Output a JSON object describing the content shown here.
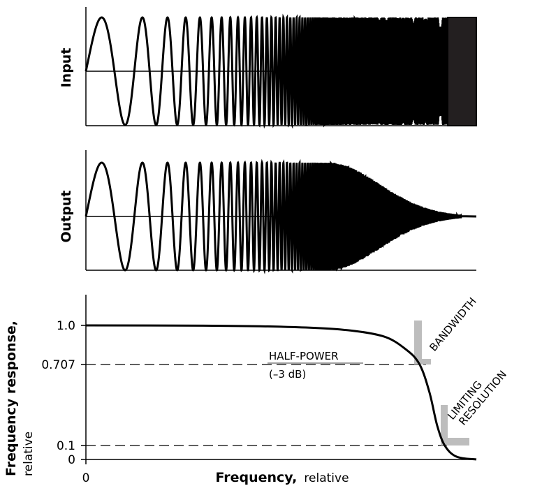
{
  "chart_data": [
    {
      "type": "line",
      "ylabel": "Input",
      "description_signal": "chirp sinusoid, amplitude 1.0, frequency increasing left to right",
      "amplitude": 1.0
    },
    {
      "type": "line",
      "ylabel": "Output",
      "description_signal": "same chirp after filtering; amplitude falls to 0 at high frequency",
      "amplitude_start": 1.0,
      "amplitude_end": 0.0
    },
    {
      "type": "line",
      "xlabel": "Frequency,",
      "xlabel_unit": "relative",
      "ylabel": "Frequency response,",
      "ylabel_unit": "relative",
      "x_ticks": [
        "0"
      ],
      "y_ticks": [
        "1.0",
        "0.707",
        "0.1",
        "0"
      ],
      "y_tick_values": [
        1.0,
        0.707,
        0.1,
        0.0
      ],
      "xlim": [
        0,
        1
      ],
      "ylim": [
        0,
        1.2
      ],
      "series": [
        {
          "points": [
            [
              0,
              1.0
            ],
            [
              0.3,
              0.998
            ],
            [
              0.5,
              0.99
            ],
            [
              0.65,
              0.97
            ],
            [
              0.76,
              0.92
            ],
            [
              0.82,
              0.82
            ],
            [
              0.855,
              0.707
            ],
            [
              0.88,
              0.5
            ],
            [
              0.9,
              0.25
            ],
            [
              0.92,
              0.1
            ],
            [
              0.95,
              0.02
            ],
            [
              1.0,
              0.0
            ]
          ]
        }
      ],
      "reference_lines": [
        {
          "y": 0.707,
          "style": "dashed"
        },
        {
          "y": 0.1,
          "style": "dashed"
        }
      ],
      "annotations": {
        "half_power": "HALF-POWER",
        "half_power_db": "(–3 dB)",
        "bandwidth": "BANDWIDTH",
        "limiting_1": "LIMITING",
        "limiting_2": "RESOLUTION"
      }
    }
  ]
}
